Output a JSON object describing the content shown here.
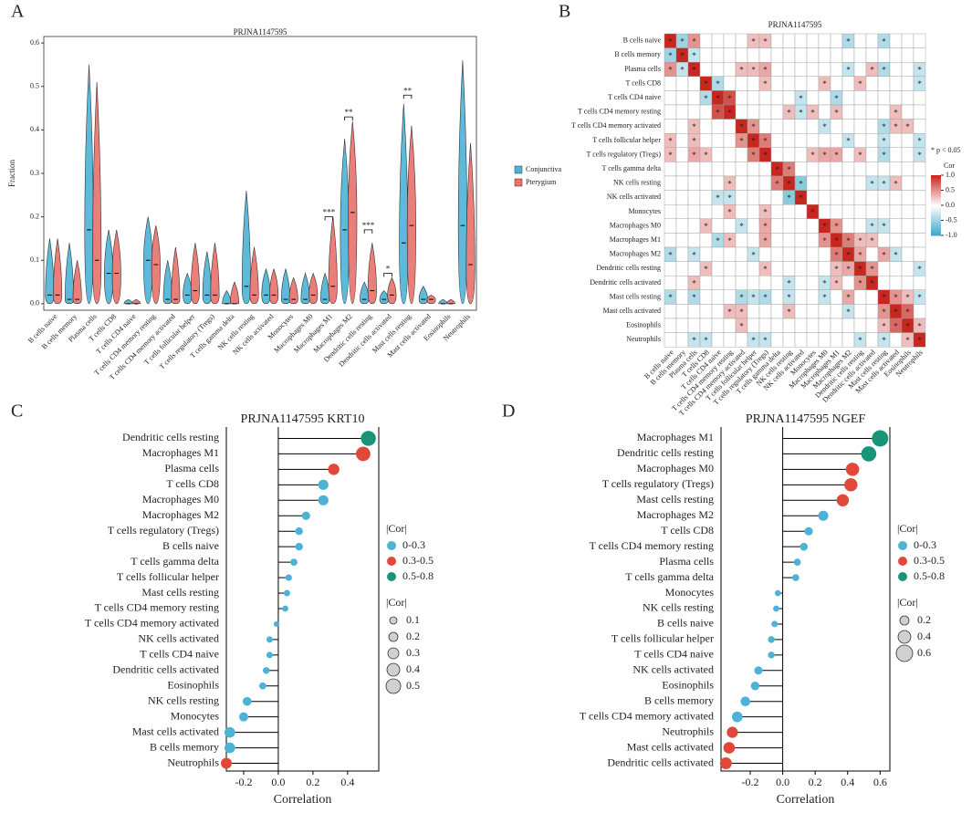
{
  "chart_data": [
    {
      "type": "violin",
      "panel": "A",
      "title": "PRJNA1147595",
      "ylabel": "Fraction",
      "categories": [
        "B cells naive",
        "B cells memory",
        "Plasma cells",
        "T cells CD8",
        "T cells CD4 naive",
        "T cells CD4 memory resting",
        "T cells CD4 memory activated",
        "T cells follicular helper",
        "T cells regulatory (Tregs)",
        "T cells gamma delta",
        "NK cells resting",
        "NK cells activated",
        "Monocytes",
        "Macrophages M0",
        "Macrophages M1",
        "Macrophages M2",
        "Dendritic cells resting",
        "Dendritic cells activated",
        "Mast cells resting",
        "Mast cells activated",
        "Eosinophils",
        "Neutrophils"
      ],
      "series": [
        {
          "name": "Conjunctiva",
          "color": "#4db3d6",
          "values": [
            0.02,
            0.01,
            0.17,
            0.07,
            0,
            0.1,
            0.01,
            0.02,
            0.02,
            0,
            0.04,
            0.02,
            0.01,
            0.01,
            0.01,
            0.17,
            0.01,
            0.01,
            0.14,
            0.01,
            0,
            0.18
          ],
          "max": [
            0.15,
            0.14,
            0.55,
            0.17,
            0.01,
            0.2,
            0.1,
            0.07,
            0.12,
            0.03,
            0.26,
            0.08,
            0.08,
            0.07,
            0.07,
            0.38,
            0.05,
            0.03,
            0.46,
            0.04,
            0.01,
            0.56
          ]
        },
        {
          "name": "Pterygium",
          "color": "#e8716b",
          "values": [
            0.02,
            0.01,
            0.1,
            0.07,
            0,
            0.09,
            0.01,
            0.03,
            0.02,
            0,
            0.02,
            0.02,
            0.01,
            0.02,
            0.04,
            0.21,
            0.03,
            0.02,
            0.18,
            0.01,
            0,
            0.09
          ],
          "max": [
            0.15,
            0.1,
            0.51,
            0.17,
            0.01,
            0.18,
            0.13,
            0.14,
            0.14,
            0.05,
            0.13,
            0.08,
            0.06,
            0.07,
            0.2,
            0.42,
            0.14,
            0.06,
            0.41,
            0.02,
            0.01,
            0.37
          ]
        }
      ],
      "annotations": [
        {
          "category": 14,
          "text": "***",
          "y": 0.2
        },
        {
          "category": 15,
          "text": "**",
          "y": 0.43
        },
        {
          "category": 16,
          "text": "***",
          "y": 0.17
        },
        {
          "category": 17,
          "text": "*",
          "y": 0.07
        },
        {
          "category": 18,
          "text": "**",
          "y": 0.48
        }
      ],
      "ylim": [
        -0.015,
        0.615
      ],
      "yticks": [
        {
          "value": 0,
          "label": "0.0"
        },
        0.1,
        0.2,
        0.3,
        0.4,
        0.5,
        0.6
      ]
    },
    {
      "type": "heatmap",
      "panel": "B",
      "title": "PRJNA1147595",
      "labels": [
        "B cells naive",
        "B cells memory",
        "Plasma cells",
        "T cells CD8",
        "T cells CD4 naive",
        "T cells CD4 memory resting",
        "T cells CD4 memory activated",
        "T cells follicular helper",
        "T cells regulatory (Tregs)",
        "T cells gamma delta",
        "NK cells resting",
        "NK cells activated",
        "Monocytes",
        "Macrophages M0",
        "Macrophages M1",
        "Macrophages M2",
        "Dendritic cells resting",
        "Dendritic cells activated",
        "Mast cells resting",
        "Mast cells activated",
        "Eosinophils",
        "Neutrophils"
      ],
      "values": [
        [
          1,
          -0.5,
          0.5,
          0,
          0,
          0,
          0,
          0.3,
          0.3,
          0,
          0,
          0,
          0,
          0,
          0,
          -0.4,
          0,
          0,
          -0.4,
          0,
          0,
          0
        ],
        [
          -0.5,
          1,
          -0.3,
          0,
          0,
          0,
          0,
          0,
          0,
          0,
          0,
          0,
          0,
          0,
          0,
          0,
          0,
          0,
          0,
          0,
          0,
          0
        ],
        [
          0.5,
          -0.3,
          1,
          0,
          0,
          0,
          0.3,
          0.3,
          0.4,
          0,
          0,
          0,
          0,
          0,
          0,
          -0.3,
          0,
          0.3,
          -0.4,
          0,
          0,
          -0.3
        ],
        [
          0,
          0,
          0,
          1,
          -0.4,
          0,
          0,
          0,
          0.3,
          0,
          0,
          0,
          0,
          0.3,
          0,
          0,
          0.3,
          0,
          0,
          0,
          0,
          -0.3
        ],
        [
          0,
          0,
          0,
          -0.4,
          1,
          0.8,
          0,
          0,
          0,
          0,
          0,
          -0.3,
          0,
          0,
          -0.4,
          0,
          0,
          0,
          0,
          0,
          0,
          0
        ],
        [
          0,
          0,
          0,
          0,
          0.8,
          1,
          0,
          0,
          0,
          0,
          0.3,
          -0.3,
          0.3,
          0,
          0.3,
          0,
          0,
          0,
          0,
          0.3,
          0,
          0
        ],
        [
          0,
          0,
          0.3,
          0,
          0,
          0,
          1,
          0.5,
          0,
          0,
          0,
          0,
          0,
          -0.3,
          0,
          0,
          0,
          0,
          -0.4,
          0.3,
          0.3,
          0
        ],
        [
          0.3,
          0,
          0.3,
          0,
          0,
          0,
          0.5,
          1,
          0.6,
          0,
          0,
          0,
          0,
          0,
          0,
          -0.3,
          0,
          0,
          -0.3,
          0,
          0,
          -0.3
        ],
        [
          0.3,
          0,
          0.4,
          0.3,
          0,
          0,
          0,
          0.6,
          1,
          0,
          0,
          0,
          0.3,
          0.4,
          0.4,
          0,
          0.3,
          0,
          -0.4,
          0,
          0,
          -0.3
        ],
        [
          0,
          0,
          0,
          0,
          0,
          0,
          0,
          0,
          0,
          1,
          0.6,
          0,
          0,
          0,
          0,
          0,
          0,
          0,
          0,
          0,
          0,
          0
        ],
        [
          0,
          0,
          0,
          0,
          0,
          0.3,
          0,
          0,
          0,
          0.6,
          1,
          -0.6,
          0,
          0,
          0,
          0,
          0,
          -0.3,
          -0.3,
          0.3,
          0,
          0
        ],
        [
          0,
          0,
          0,
          0,
          -0.3,
          -0.3,
          0,
          0,
          0,
          0,
          -0.6,
          1,
          0,
          0,
          0,
          0,
          0,
          0,
          0,
          0,
          0,
          0
        ],
        [
          0,
          0,
          0,
          0,
          0,
          0.3,
          0,
          0,
          0.3,
          0,
          0,
          0,
          1,
          0,
          0,
          0,
          0,
          0,
          0,
          0,
          0,
          0
        ],
        [
          0,
          0,
          0,
          0.3,
          0,
          0,
          -0.3,
          0,
          0.4,
          0,
          0,
          0,
          0,
          1,
          0.5,
          0,
          0,
          -0.3,
          -0.3,
          0,
          0,
          0
        ],
        [
          0,
          0,
          0,
          0,
          -0.4,
          0.3,
          0,
          0,
          0.4,
          0,
          0,
          0,
          0,
          0.5,
          1,
          0.6,
          0.3,
          0.3,
          0,
          0,
          0,
          0
        ],
        [
          -0.4,
          0,
          -0.3,
          0,
          0,
          0,
          0,
          -0.3,
          0,
          0,
          0,
          0,
          0,
          0,
          0.6,
          1,
          0.4,
          0,
          0.4,
          -0.3,
          0,
          0
        ],
        [
          0,
          0,
          0,
          0.3,
          0,
          0,
          0,
          0,
          0.3,
          0,
          0,
          0,
          0,
          0,
          0.3,
          0.4,
          1,
          0.5,
          0,
          0,
          0,
          -0.3
        ],
        [
          0,
          0,
          0.3,
          0,
          0,
          0,
          0,
          0,
          0,
          0,
          -0.3,
          0,
          0,
          -0.3,
          0.3,
          0,
          0.5,
          1,
          0,
          0,
          0,
          0
        ],
        [
          -0.4,
          0,
          -0.4,
          0,
          0,
          0,
          -0.4,
          -0.3,
          -0.4,
          0,
          -0.3,
          0,
          0,
          -0.3,
          0,
          0.4,
          0,
          0,
          1,
          0.5,
          0.3,
          -0.3
        ],
        [
          0,
          0,
          0,
          0,
          0,
          0.3,
          0.3,
          0,
          0,
          0,
          0.3,
          0,
          0,
          0,
          0,
          -0.3,
          0,
          0,
          0.5,
          1,
          0.7,
          0
        ],
        [
          0,
          0,
          0,
          0,
          0,
          0,
          0.3,
          0,
          0,
          0,
          0,
          0,
          0,
          0,
          0,
          0,
          0,
          0,
          0.3,
          0.7,
          1,
          0.3
        ],
        [
          0,
          0,
          -0.3,
          -0.3,
          0,
          0,
          0,
          -0.3,
          -0.3,
          0,
          0,
          0,
          0,
          0,
          0,
          0,
          -0.3,
          0,
          -0.3,
          0,
          0.3,
          1
        ]
      ],
      "stars": [
        [
          0,
          1,
          2,
          7,
          8,
          15,
          18
        ],
        [
          0,
          1,
          2
        ],
        [
          0,
          1,
          2,
          6,
          7,
          8,
          15,
          17,
          18,
          21
        ],
        [
          3,
          4,
          8,
          13,
          16,
          21
        ],
        [
          3,
          4,
          5,
          11,
          14
        ],
        [
          4,
          5,
          10,
          11,
          12,
          14,
          19
        ],
        [
          2,
          6,
          7,
          13,
          18,
          19,
          20
        ],
        [
          0,
          2,
          6,
          7,
          8,
          15,
          18,
          21
        ],
        [
          0,
          2,
          3,
          7,
          8,
          12,
          13,
          14,
          16,
          18,
          21
        ],
        [
          9,
          10
        ],
        [
          5,
          9,
          10,
          11,
          17,
          18,
          19
        ],
        [
          4,
          5,
          10,
          11
        ],
        [
          5,
          8,
          12
        ],
        [
          3,
          6,
          8,
          13,
          14,
          17,
          18
        ],
        [
          4,
          5,
          8,
          13,
          14,
          15,
          16,
          17
        ],
        [
          0,
          2,
          7,
          14,
          15,
          16,
          18,
          19
        ],
        [
          3,
          8,
          14,
          15,
          16,
          17,
          21
        ],
        [
          2,
          10,
          13,
          14,
          16,
          17
        ],
        [
          0,
          2,
          6,
          7,
          8,
          10,
          13,
          15,
          18,
          19,
          20,
          21
        ],
        [
          5,
          6,
          10,
          15,
          18,
          19,
          20
        ],
        [
          6,
          18,
          19,
          20,
          21
        ],
        [
          2,
          3,
          7,
          8,
          16,
          18,
          20,
          21
        ]
      ],
      "star": "*",
      "significance_note": "* p < 0.05",
      "legend_title": "Cor",
      "colors": {
        "negative": "#3aa6c6",
        "zero": "#ffffff",
        "positive": "#c8261e"
      },
      "clim": [
        -1,
        1
      ],
      "cticks": [
        {
          "value": 1,
          "label": "1.0"
        },
        0.5,
        {
          "value": 0,
          "label": "0.0"
        },
        -0.5,
        {
          "value": -1,
          "label": "-1.0"
        }
      ]
    },
    {
      "type": "lollipop",
      "panel": "C",
      "title": "PRJNA1147595 KRT10",
      "xlabel": "Correlation",
      "categories": [
        "Dendritic cells resting",
        "Macrophages M1",
        "Plasma cells",
        "T cells CD8",
        "Macrophages M0",
        "Macrophages M2",
        "T cells regulatory (Tregs)",
        "B cells naive",
        "T cells gamma delta",
        "T cells follicular helper",
        "Mast cells resting",
        "T cells CD4 memory resting",
        "T cells CD4 memory activated",
        "NK cells activated",
        "T cells CD4 naive",
        "Dendritic cells activated",
        "Eosinophils",
        "NK cells resting",
        "Monocytes",
        "Mast cells activated",
        "B cells memory",
        "Neutrophils"
      ],
      "values": [
        0.52,
        0.49,
        0.32,
        0.26,
        0.26,
        0.16,
        0.12,
        0.12,
        0.09,
        0.06,
        0.05,
        0.04,
        -0.01,
        -0.05,
        -0.05,
        -0.07,
        -0.09,
        -0.18,
        -0.2,
        -0.28,
        -0.28,
        -0.3
      ],
      "groups": [
        2,
        1,
        1,
        0,
        0,
        0,
        0,
        0,
        0,
        0,
        0,
        0,
        0,
        0,
        0,
        0,
        0,
        0,
        0,
        0,
        0,
        1
      ],
      "color_legend": {
        "title": "|Cor|",
        "items": [
          {
            "label": "0-0.3",
            "color": "#4db3d6"
          },
          {
            "label": "0.3-0.5",
            "color": "#e0483a"
          },
          {
            "label": "0.5-0.8",
            "color": "#1a9479"
          }
        ]
      },
      "size_legend": {
        "title": "|Cor|",
        "values": [
          0.1,
          0.2,
          0.3,
          0.4,
          0.5
        ]
      },
      "xlim": [
        -0.3,
        0.58
      ],
      "xticks": [
        -0.2,
        {
          "value": 0,
          "label": "0.0"
        },
        0.2,
        0.4
      ]
    },
    {
      "type": "lollipop",
      "panel": "D",
      "title": "PRJNA1147595 NGEF",
      "xlabel": "Correlation",
      "categories": [
        "Macrophages M1",
        "Dendritic cells resting",
        "Macrophages M0",
        "T cells regulatory (Tregs)",
        "Mast cells resting",
        "Macrophages M2",
        "T cells CD8",
        "T cells CD4 memory resting",
        "Plasma cells",
        "T cells gamma delta",
        "Monocytes",
        "NK cells resting",
        "B cells naive",
        "T cells follicular helper",
        "T cells CD4 naive",
        "NK cells activated",
        "Eosinophils",
        "B cells memory",
        "T cells CD4 memory activated",
        "Neutrophils",
        "Mast cells activated",
        "Dendritic cells activated"
      ],
      "values": [
        0.6,
        0.53,
        0.43,
        0.42,
        0.37,
        0.25,
        0.16,
        0.13,
        0.09,
        0.08,
        -0.03,
        -0.04,
        -0.05,
        -0.07,
        -0.07,
        -0.15,
        -0.17,
        -0.23,
        -0.28,
        -0.31,
        -0.33,
        -0.35
      ],
      "groups": [
        2,
        2,
        1,
        1,
        1,
        0,
        0,
        0,
        0,
        0,
        0,
        0,
        0,
        0,
        0,
        0,
        0,
        0,
        0,
        1,
        1,
        1
      ],
      "color_legend": {
        "title": "|Cor|",
        "items": [
          {
            "label": "0-0.3",
            "color": "#4db3d6"
          },
          {
            "label": "0.3-0.5",
            "color": "#e0483a"
          },
          {
            "label": "0.5-0.8",
            "color": "#1a9479"
          }
        ]
      },
      "size_legend": {
        "title": "|Cor|",
        "values": [
          0.2,
          0.4,
          0.6
        ]
      },
      "xlim": [
        -0.38,
        0.66
      ],
      "xticks": [
        -0.2,
        {
          "value": 0,
          "label": "0.0"
        },
        0.2,
        0.4,
        0.6
      ]
    }
  ]
}
